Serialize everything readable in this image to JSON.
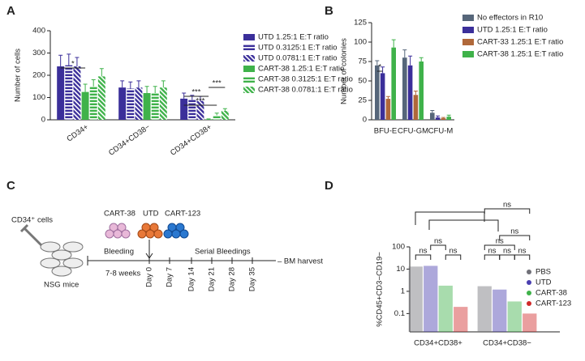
{
  "chart_data": [
    {
      "type": "bar",
      "panel_label": "A",
      "y_label": "Number of cells",
      "categories": [
        "CD34+",
        "CD34+CD38−",
        "CD34+CD38+"
      ],
      "series": [
        {
          "name": "UTD 1.25:1 E:T ratio",
          "color": "#3b2f9a",
          "pattern": "solid",
          "values": [
            240,
            145,
            95
          ],
          "errors": [
            50,
            30,
            25
          ]
        },
        {
          "name": "UTD 0.3125:1 E:T ratio",
          "color": "#3b2f9a",
          "pattern": "horizontal-stripes",
          "values": [
            245,
            140,
            90
          ],
          "errors": [
            50,
            30,
            20
          ]
        },
        {
          "name": "UTD 0.0781:1 E:T ratio",
          "color": "#3b2f9a",
          "pattern": "diagonal-stripes",
          "values": [
            240,
            145,
            85
          ],
          "errors": [
            40,
            30,
            20
          ]
        },
        {
          "name": "CART-38 1.25:1 E:T ratio",
          "color": "#3fb24a",
          "pattern": "solid",
          "values": [
            125,
            120,
            2
          ],
          "errors": [
            35,
            30,
            2
          ]
        },
        {
          "name": "CART-38 0.3125:1 E:T ratio",
          "color": "#3fb24a",
          "pattern": "horizontal-stripes",
          "values": [
            150,
            120,
            20
          ],
          "errors": [
            30,
            30,
            10
          ]
        },
        {
          "name": "CART-38 0.0781:1 E:T ratio",
          "color": "#3fb24a",
          "pattern": "diagonal-stripes",
          "values": [
            195,
            145,
            40
          ],
          "errors": [
            35,
            30,
            10
          ]
        }
      ],
      "ylim": [
        0,
        400
      ],
      "yticks": [
        0,
        100,
        200,
        300,
        400
      ],
      "annotations": [
        "*",
        "***",
        "***",
        "***"
      ],
      "legend": "right"
    },
    {
      "type": "bar",
      "panel_label": "B",
      "y_label": "Number of colonies",
      "categories": [
        "BFU-E",
        "CFU-GM",
        "CFU-M"
      ],
      "series": [
        {
          "name": "No effectors in R10",
          "color": "#56667a",
          "pattern": "solid",
          "values": [
            70,
            80,
            9
          ],
          "errors": [
            6,
            10,
            3
          ]
        },
        {
          "name": "UTD 1.25:1 E:T ratio",
          "color": "#3b2f9a",
          "pattern": "solid",
          "values": [
            60,
            70,
            3
          ],
          "errors": [
            8,
            12,
            2
          ]
        },
        {
          "name": "CART-33 1.25:1 E:T ratio",
          "color": "#b0683a",
          "pattern": "solid",
          "values": [
            27,
            32,
            2
          ],
          "errors": [
            3,
            5,
            1
          ]
        },
        {
          "name": "CART-38 1.25:1 E:T ratio",
          "color": "#3fb24a",
          "pattern": "solid",
          "values": [
            93,
            75,
            4
          ],
          "errors": [
            10,
            5,
            2
          ]
        }
      ],
      "ylim": [
        0,
        125
      ],
      "yticks": [
        0,
        25,
        50,
        75,
        100,
        125
      ],
      "annotations": [
        "*"
      ],
      "legend": "right"
    },
    {
      "type": "bar",
      "panel_label": "D",
      "y_label": "%CD45+CD3−CD19−",
      "log_scale": true,
      "categories": [
        "CD34+CD38+",
        "CD34+CD38−"
      ],
      "series": [
        {
          "name": "PBS",
          "color": "#707078",
          "values": [
            13,
            1.7
          ]
        },
        {
          "name": "UTD",
          "color": "#4a3fb0",
          "values": [
            14,
            1.2
          ]
        },
        {
          "name": "CART-38",
          "color": "#3fb24a",
          "values": [
            1.8,
            0.35
          ]
        },
        {
          "name": "CART-123",
          "color": "#d02a2a",
          "values": [
            0.2,
            0.1
          ]
        }
      ],
      "ylim": [
        0.015,
        100
      ],
      "yticks": [
        0.1,
        1,
        10,
        100
      ],
      "annotations": [
        "ns",
        "ns",
        "ns",
        "ns",
        "ns",
        "ns",
        "ns",
        "ns",
        "ns"
      ],
      "legend": "right"
    }
  ],
  "diagram": {
    "panel_label": "C",
    "cells": "CD34⁺ cells",
    "mice": "NSG mice",
    "bleeding": "Bleeding",
    "weeks": "7-8 weeks",
    "products": [
      "CART-38",
      "UTD",
      "CART-123"
    ],
    "serial": "Serial Bleedings",
    "days": [
      "Day 0",
      "Day 7",
      "Day 14",
      "Day 21",
      "Day 28",
      "Day 35"
    ],
    "end": "– BM harvest"
  }
}
